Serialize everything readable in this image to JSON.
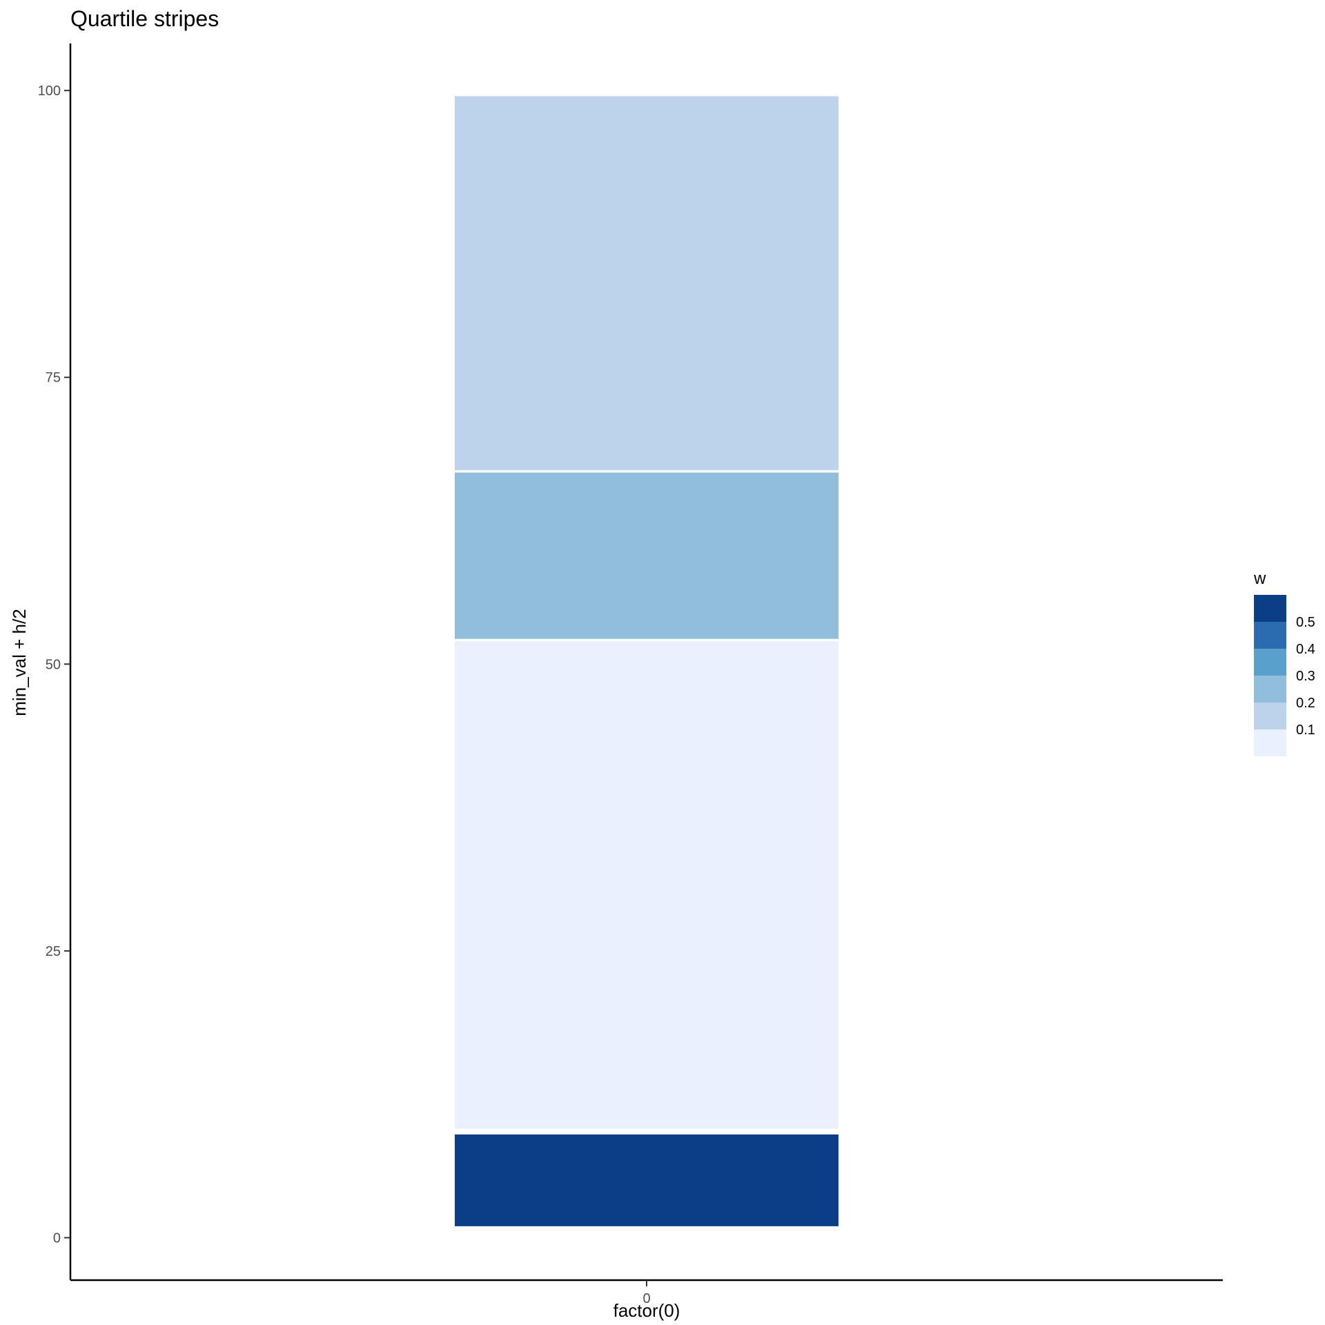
{
  "chart_data": {
    "type": "bar",
    "title": "Quartile stripes",
    "xlabel": "factor(0)",
    "ylabel": "min_val + h/2",
    "x_categories": [
      "0"
    ],
    "ylim": [
      -3.7,
      104.1
    ],
    "y_ticks": [
      0,
      25,
      50,
      75,
      100
    ],
    "grid": false,
    "segments": [
      {
        "x": "0",
        "y_min": 1.0,
        "y_max": 9.0,
        "w": 0.5,
        "color": "#0c3e88"
      },
      {
        "x": "0",
        "y_min": 9.5,
        "y_max": 52.0,
        "w": 0.08,
        "color": "#eaf0fd"
      },
      {
        "x": "0",
        "y_min": 52.2,
        "y_max": 66.7,
        "w": 0.21,
        "color": "#91bedb"
      },
      {
        "x": "0",
        "y_min": 66.9,
        "y_max": 99.5,
        "w": 0.16,
        "color": "#bdd2eb"
      }
    ],
    "legend": {
      "title": "w",
      "position": "right",
      "breaks": [
        0.5,
        0.4,
        0.3,
        0.2,
        0.1
      ],
      "labels": [
        "0.5",
        "0.4",
        "0.3",
        "0.2",
        "0.1"
      ],
      "bins": [
        "#0c3e88",
        "#2b6cb1",
        "#5aa0cd",
        "#91bedb",
        "#bdd2eb",
        "#eaf0fd"
      ]
    }
  }
}
